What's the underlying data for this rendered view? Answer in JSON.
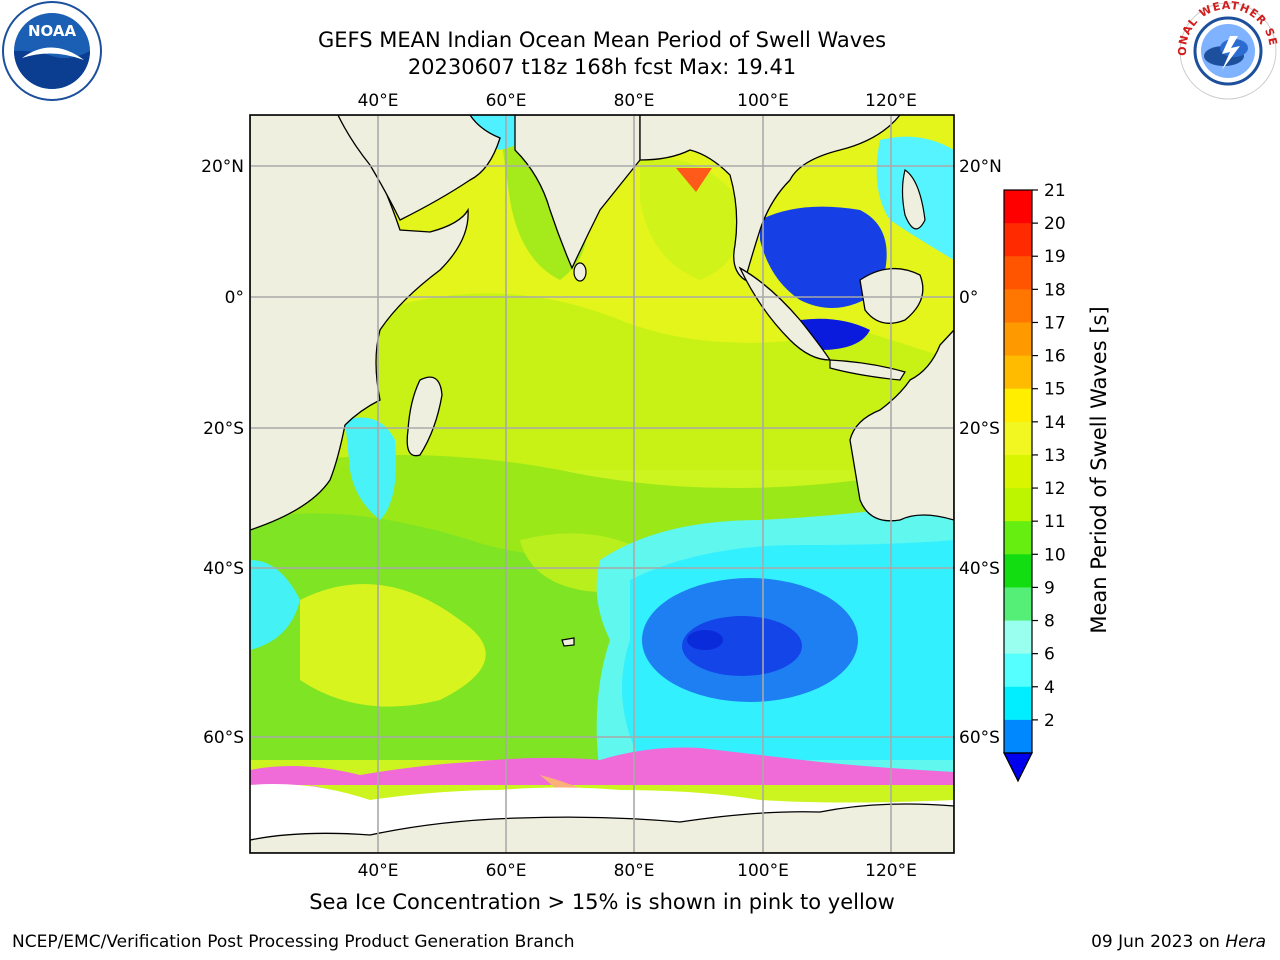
{
  "header": {
    "title_line1": "GEFS MEAN Indian Ocean Mean Period of Swell Waves",
    "title_line2": "20230607 t18z 168h fcst   Max: 19.41"
  },
  "logos": {
    "left": {
      "icon": "noaa-logo-icon",
      "text": "NOAA"
    },
    "right": {
      "icon": "nws-logo-icon",
      "text": "NATIONAL WEATHER SERVICE"
    }
  },
  "map": {
    "lon_ticks_top": [
      "40°E",
      "60°E",
      "80°E",
      "100°E",
      "120°E"
    ],
    "lon_ticks_bottom": [
      "40°E",
      "60°E",
      "80°E",
      "100°E",
      "120°E"
    ],
    "lat_ticks_left": [
      "20°N",
      "0°",
      "20°S",
      "40°S",
      "60°S"
    ],
    "lat_ticks_right": [
      "20°N",
      "0°",
      "20°S",
      "40°S",
      "60°S"
    ],
    "colors": {
      "land": "#efefdf",
      "grid": "#a9a9a9",
      "sea_ice": "#ffffff"
    }
  },
  "colorbar": {
    "title": "Mean Period of Swell Waves [s]",
    "labels": [
      "21",
      "20",
      "19",
      "18",
      "17",
      "16",
      "15",
      "14",
      "13",
      "12",
      "11",
      "10",
      "9",
      "8",
      "6",
      "4",
      "2"
    ],
    "colors_top_to_bottom": [
      "#ff0000",
      "#ff2a00",
      "#ff5500",
      "#ff7700",
      "#ff9900",
      "#ffbb00",
      "#ffee00",
      "#f2f722",
      "#d9f500",
      "#bdf500",
      "#66ee11",
      "#11dd11",
      "#55ee77",
      "#99ffee",
      "#55ffff",
      "#00eeff",
      "#0088ff"
    ],
    "extend_color": "#0000ee"
  },
  "note": "Sea Ice Concentration > 15% is shown in pink to yellow",
  "footer": {
    "left": "NCEP/EMC/Verification Post Processing Product Generation Branch",
    "right_date": "09 Jun 2023 on ",
    "right_machine": "Hera"
  }
}
